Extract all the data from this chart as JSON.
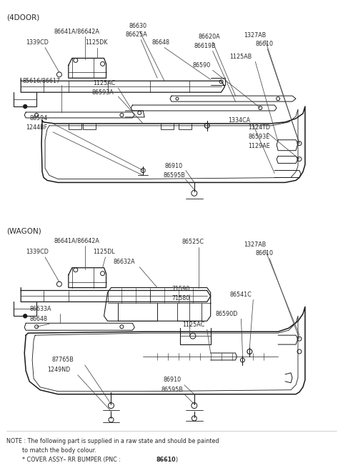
{
  "bg_color": "#ffffff",
  "line_color": "#1a1a1a",
  "label_color": "#2a2a2a",
  "section_4door": "(4DOOR)",
  "section_wagon": "(WAGON)",
  "note_line1": "NOTE : The following part is supplied in a raw state and should be painted",
  "note_line2": "to match the body colour.",
  "note_line3_pre": "    * COVER ASSY– RR BUMPER (PNC : ",
  "note_line3_bold": "86610",
  "note_line3_post": ")",
  "font_size_label": 5.8,
  "font_size_header": 7.5,
  "font_size_note": 5.8
}
